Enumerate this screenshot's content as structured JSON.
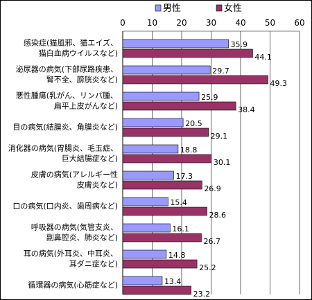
{
  "chart_data": {
    "type": "bar",
    "orientation": "horizontal",
    "x_ticks": [
      0,
      10,
      20,
      30,
      40,
      50,
      60
    ],
    "xlim": [
      0,
      60
    ],
    "grid": true,
    "legend_position": "top",
    "categories": [
      [
        "感染症(猫風邪、猫エイズ、",
        "猫白血病ウイルスなど)"
      ],
      [
        "泌尿器の病気(下部尿路疾患、",
        "腎不全、膀胱炎など)"
      ],
      [
        "悪性腫瘍(乳がん、リンパ腫、",
        "扁平上皮がんなど)"
      ],
      [
        "目の病気(結膜炎、角膜炎など)"
      ],
      [
        "消化器の病気(胃腸炎、毛玉症、",
        "巨大結腸症など)"
      ],
      [
        "皮膚の病気(アレルギー性",
        "皮膚炎など)"
      ],
      [
        "口の病気(口内炎、歯周病など)"
      ],
      [
        "呼吸器の病気(気管支炎、",
        "副鼻腔炎、肺炎など)"
      ],
      [
        "耳の病気(外耳炎、中耳炎、",
        "耳ダニ症など)"
      ],
      [
        "循環器の病気(心筋症など)"
      ]
    ],
    "series": [
      {
        "name": "男性",
        "color": "#9999FF",
        "values": [
          35.9,
          29.7,
          25.9,
          20.5,
          18.8,
          17.3,
          15.4,
          16.1,
          14.8,
          13.4
        ]
      },
      {
        "name": "女性",
        "color": "#993366",
        "values": [
          44.1,
          49.3,
          38.4,
          29.1,
          30.1,
          26.9,
          28.6,
          26.7,
          25.2,
          23.2
        ]
      }
    ]
  }
}
